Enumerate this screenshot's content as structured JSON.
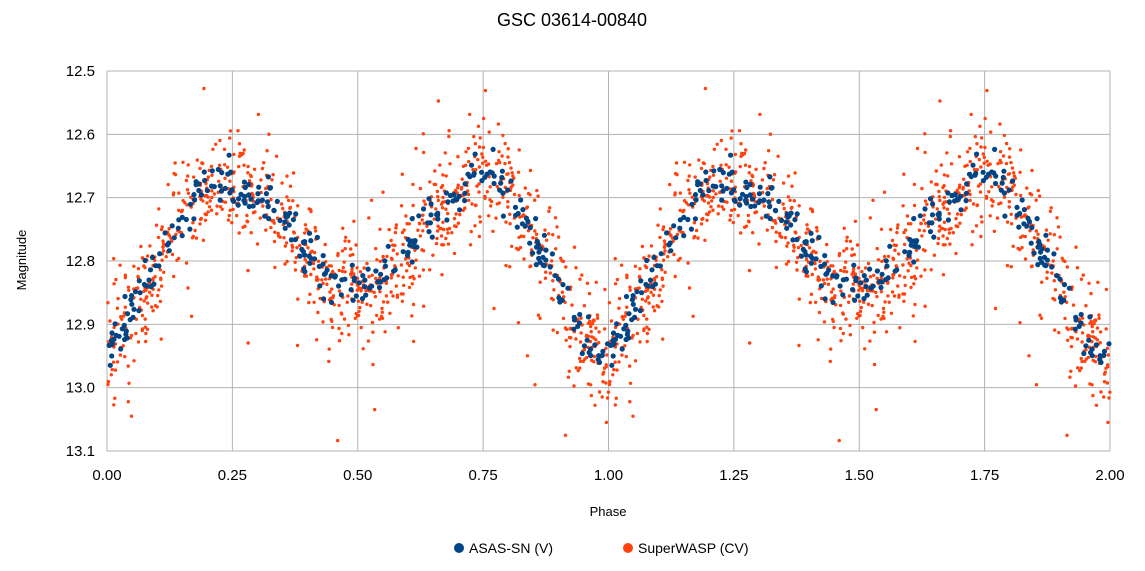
{
  "chart_data": {
    "type": "scatter",
    "title": "GSC 03614-00840",
    "xlabel": "Phase",
    "ylabel": "Magnitude",
    "xlim": [
      0.0,
      2.0
    ],
    "ylim": [
      12.5,
      13.1
    ],
    "y_inverted": true,
    "grid": true,
    "legend_position": "bottom",
    "x_ticks": [
      "0.00",
      "0.25",
      "0.50",
      "0.75",
      "1.00",
      "1.25",
      "1.50",
      "1.75",
      "2.00"
    ],
    "y_ticks": [
      "12.5",
      "12.6",
      "12.7",
      "12.8",
      "12.9",
      "13.0",
      "13.1"
    ],
    "colors": {
      "ASAS-SN (V)": "#004586",
      "SuperWASP (CV)": "#ff420e",
      "grid": "#b3b3b3"
    },
    "light_curve": {
      "phase": [
        0.0,
        0.05,
        0.1,
        0.15,
        0.2,
        0.25,
        0.3,
        0.35,
        0.4,
        0.45,
        0.5,
        0.55,
        0.6,
        0.65,
        0.7,
        0.75,
        0.8,
        0.85,
        0.9,
        0.95,
        1.0
      ],
      "magnitude": [
        12.95,
        12.88,
        12.8,
        12.73,
        12.68,
        12.67,
        12.69,
        12.73,
        12.79,
        12.83,
        12.85,
        12.83,
        12.78,
        12.73,
        12.69,
        12.66,
        12.69,
        12.76,
        12.84,
        12.92,
        12.95
      ]
    },
    "series": [
      {
        "name": "ASAS-SN (V)",
        "points": 300,
        "scatter": 0.018
      },
      {
        "name": "SuperWASP (CV)",
        "points": 1000,
        "scatter": 0.045
      }
    ]
  }
}
